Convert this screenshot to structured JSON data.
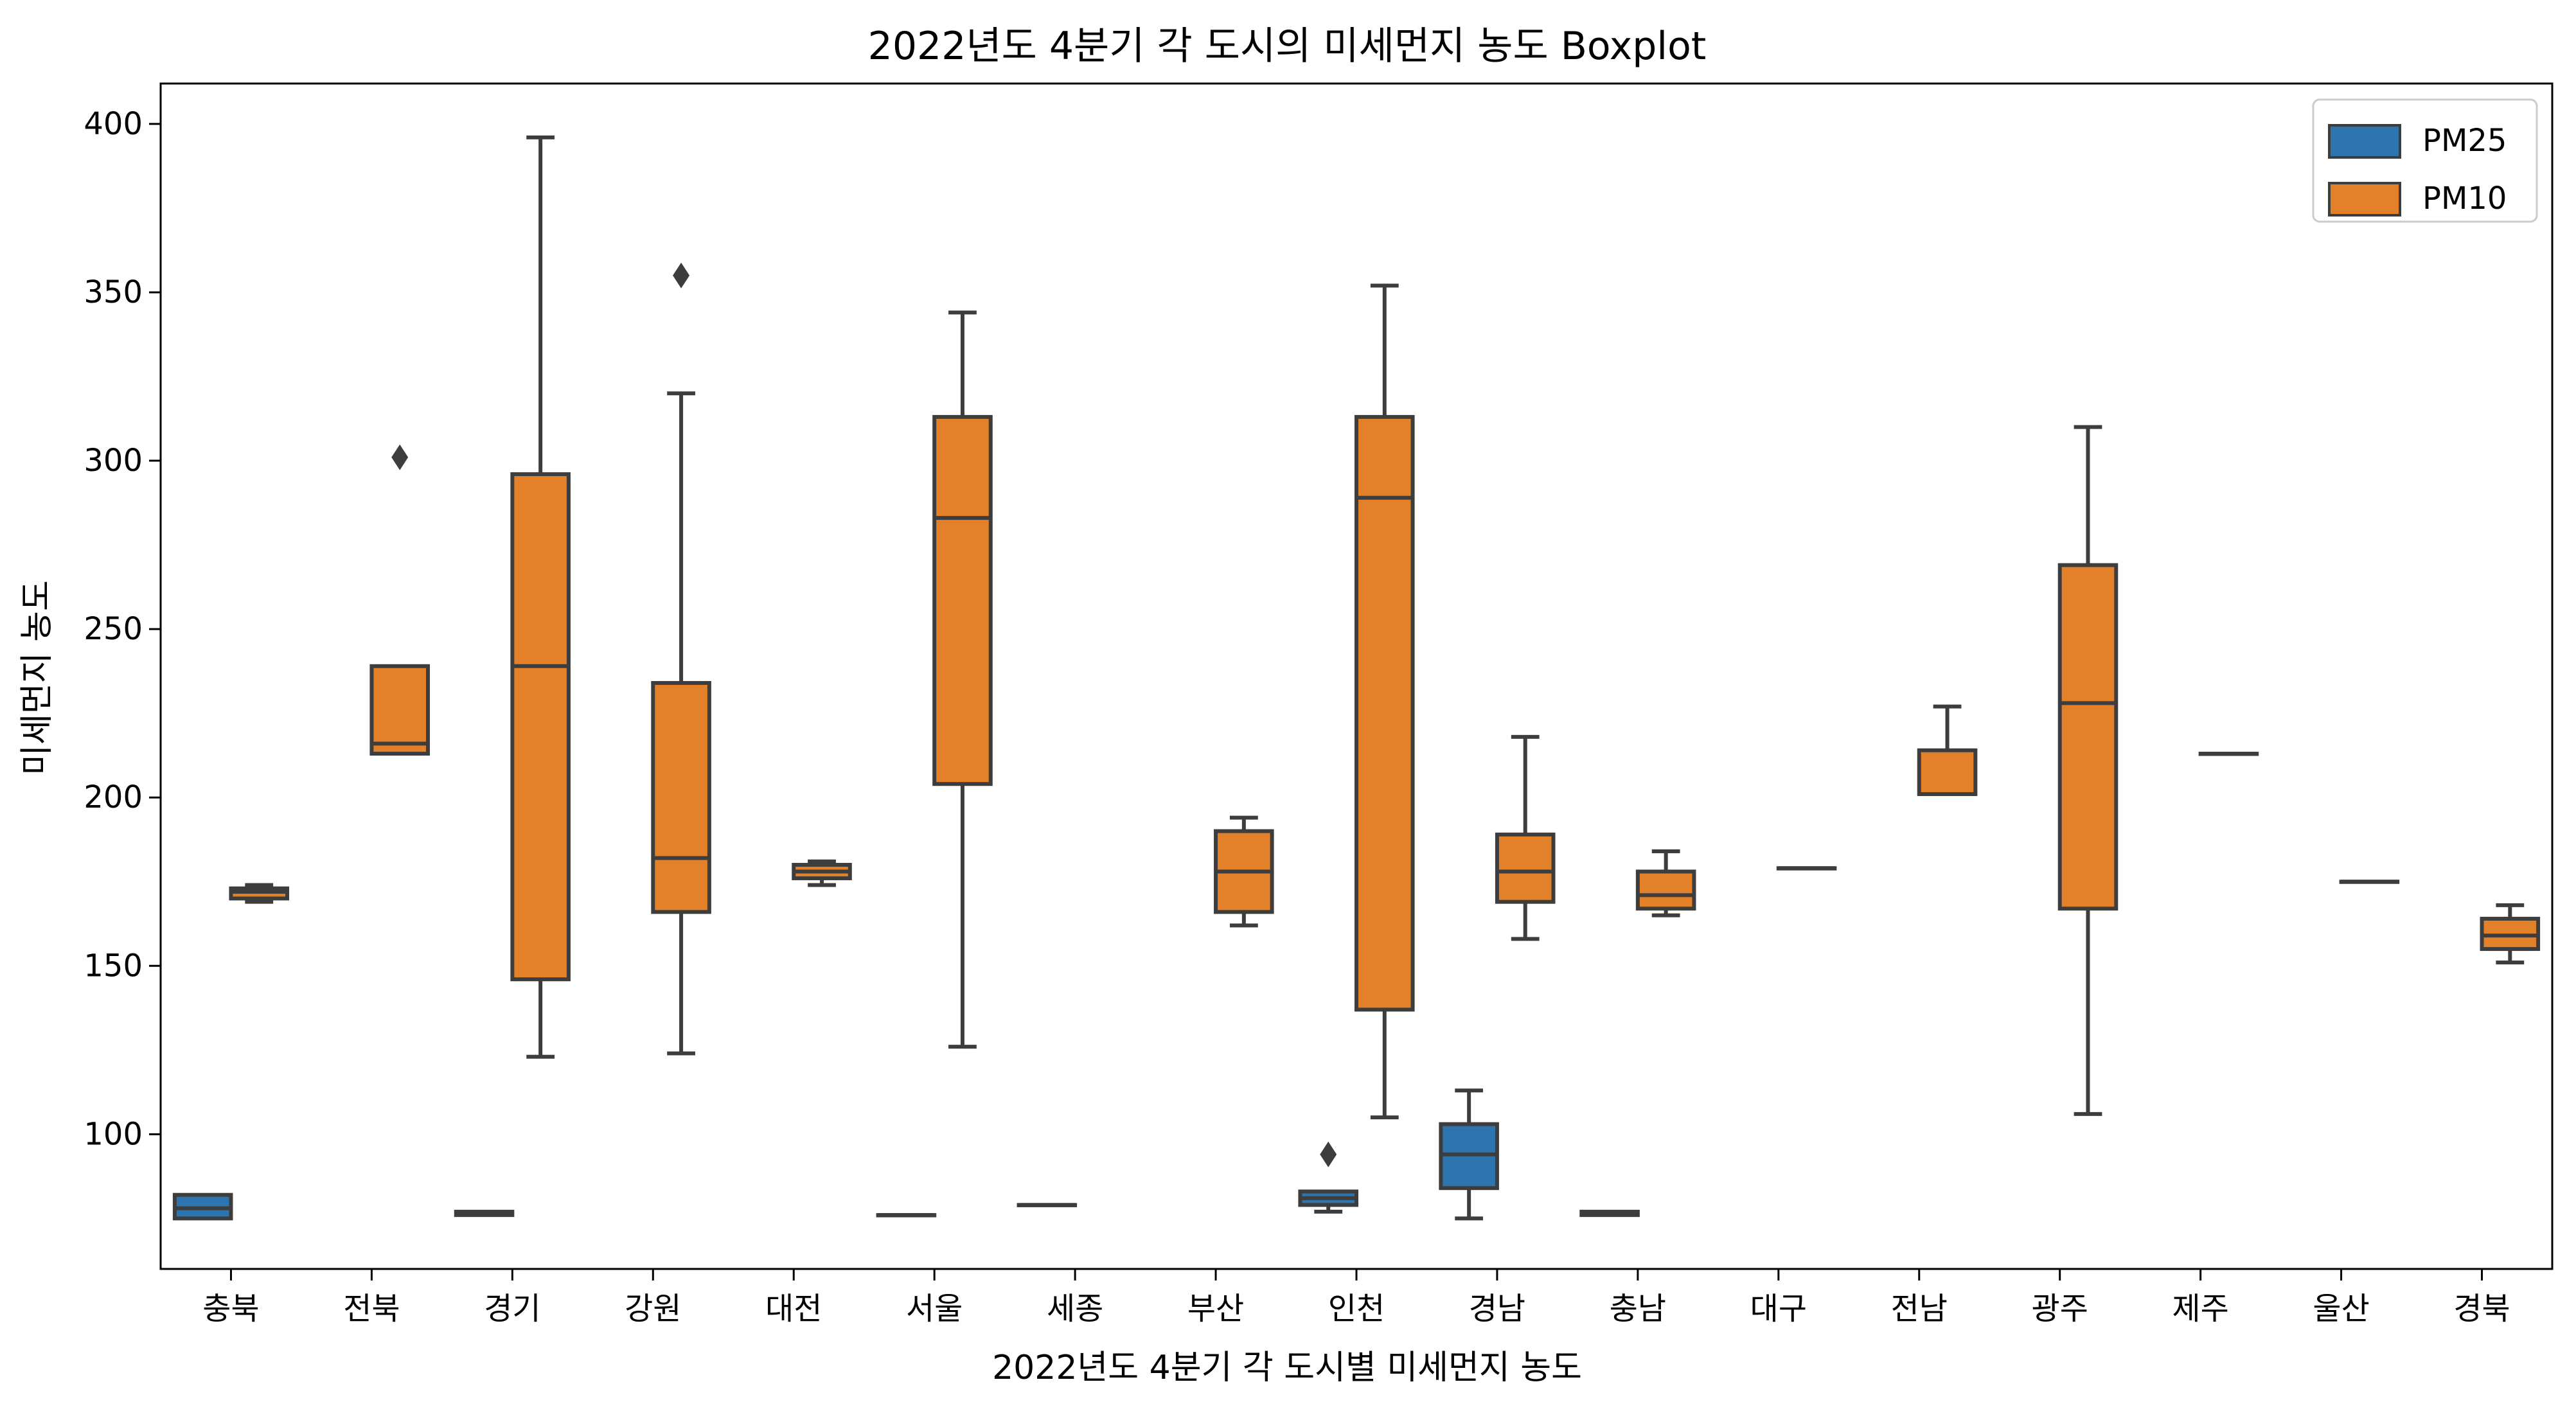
{
  "chart_data": {
    "type": "boxplot",
    "title": "2022년도 4분기 각 도시의 미세먼지 농도 Boxplot",
    "xlabel": "2022년도 4분기 각 도시별 미세먼지 농도",
    "ylabel": "미세먼지 농도",
    "ylim": [
      60,
      412
    ],
    "yticks": [
      100,
      150,
      200,
      250,
      300,
      350,
      400
    ],
    "categories": [
      "충북",
      "전북",
      "경기",
      "강원",
      "대전",
      "서울",
      "세종",
      "부산",
      "인천",
      "경남",
      "충남",
      "대구",
      "전남",
      "광주",
      "제주",
      "울산",
      "경북"
    ],
    "legend": {
      "position": "top-right",
      "entries": [
        "PM25",
        "PM10"
      ]
    },
    "colors": {
      "PM25": "#2e75b0",
      "PM10": "#e3812b",
      "line": "#3d3d3d"
    },
    "series": [
      {
        "name": "PM25",
        "boxes": [
          {
            "category": "충북",
            "min": 75,
            "q1": 75,
            "median": 78,
            "q3": 82,
            "max": 82,
            "outliers": []
          },
          {
            "category": "경기",
            "min": 76,
            "q1": 76,
            "median": 76.5,
            "q3": 77,
            "max": 77,
            "outliers": []
          },
          {
            "category": "서울",
            "min": 76,
            "q1": 76,
            "median": 76,
            "q3": 76,
            "max": 76,
            "outliers": []
          },
          {
            "category": "세종",
            "min": 79,
            "q1": 79,
            "median": 79,
            "q3": 79,
            "max": 79,
            "outliers": []
          },
          {
            "category": "인천",
            "min": 77,
            "q1": 79,
            "median": 81,
            "q3": 83,
            "max": 83,
            "outliers": [
              94
            ]
          },
          {
            "category": "경남",
            "min": 75,
            "q1": 84,
            "median": 94,
            "q3": 103,
            "max": 113,
            "outliers": []
          },
          {
            "category": "충남",
            "min": 76,
            "q1": 76,
            "median": 76.5,
            "q3": 77,
            "max": 77,
            "outliers": []
          }
        ]
      },
      {
        "name": "PM10",
        "boxes": [
          {
            "category": "충북",
            "min": 169,
            "q1": 170,
            "median": 172,
            "q3": 173,
            "max": 174,
            "outliers": []
          },
          {
            "category": "전북",
            "min": 213,
            "q1": 213,
            "median": 216,
            "q3": 239,
            "max": 239,
            "outliers": [
              301
            ]
          },
          {
            "category": "경기",
            "min": 123,
            "q1": 146,
            "median": 239,
            "q3": 296,
            "max": 396,
            "outliers": []
          },
          {
            "category": "강원",
            "min": 124,
            "q1": 166,
            "median": 182,
            "q3": 234,
            "max": 320,
            "outliers": [
              355
            ]
          },
          {
            "category": "대전",
            "min": 174,
            "q1": 176,
            "median": 178,
            "q3": 180,
            "max": 181,
            "outliers": []
          },
          {
            "category": "서울",
            "min": 126,
            "q1": 204,
            "median": 283,
            "q3": 313,
            "max": 344,
            "outliers": []
          },
          {
            "category": "부산",
            "min": 162,
            "q1": 166,
            "median": 178,
            "q3": 190,
            "max": 194,
            "outliers": []
          },
          {
            "category": "인천",
            "min": 105,
            "q1": 137,
            "median": 289,
            "q3": 313,
            "max": 352,
            "outliers": []
          },
          {
            "category": "경남",
            "min": 158,
            "q1": 169,
            "median": 178,
            "q3": 189,
            "max": 218,
            "outliers": []
          },
          {
            "category": "충남",
            "min": 165,
            "q1": 167,
            "median": 171,
            "q3": 178,
            "max": 184,
            "outliers": []
          },
          {
            "category": "대구",
            "min": 179,
            "q1": 179,
            "median": 179,
            "q3": 179,
            "max": 179,
            "outliers": []
          },
          {
            "category": "전남",
            "min": 201,
            "q1": 201,
            "median": 201,
            "q3": 214,
            "max": 227,
            "outliers": []
          },
          {
            "category": "광주",
            "min": 106,
            "q1": 167,
            "median": 228,
            "q3": 269,
            "max": 310,
            "outliers": []
          },
          {
            "category": "제주",
            "min": 213,
            "q1": 213,
            "median": 213,
            "q3": 213,
            "max": 213,
            "outliers": []
          },
          {
            "category": "울산",
            "min": 175,
            "q1": 175,
            "median": 175,
            "q3": 175,
            "max": 175,
            "outliers": []
          },
          {
            "category": "경북",
            "min": 151,
            "q1": 155,
            "median": 159,
            "q3": 164,
            "max": 168,
            "outliers": []
          }
        ]
      }
    ]
  }
}
